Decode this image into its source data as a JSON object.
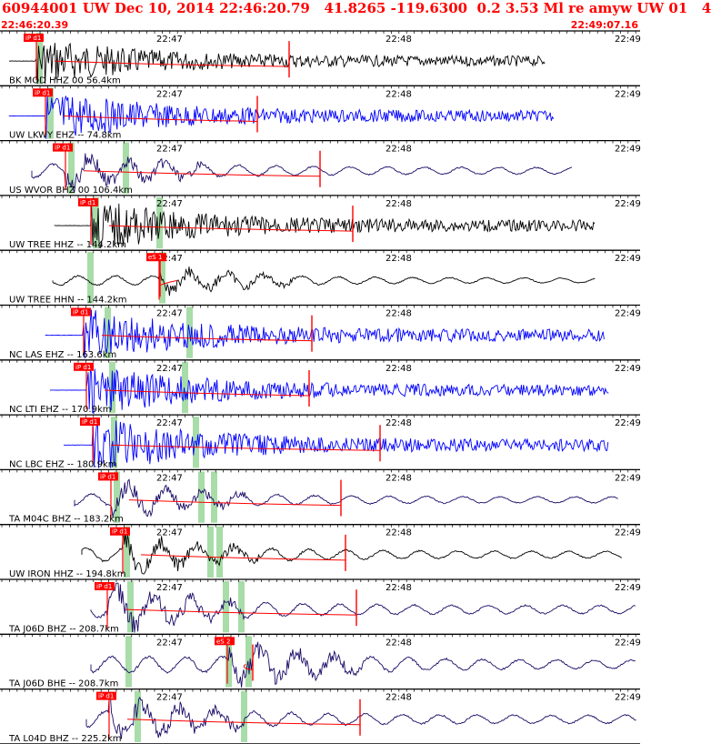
{
  "header": {
    "title": "60944001 UW Dec 10, 2014 22:46:20.79   41.8265 -119.6300  0.2 3.53 Ml re amyw UW 01   4",
    "start_time": "22:46:20.39",
    "end_time": "22:49:07.16"
  },
  "tick_labels": [
    "22:47",
    "22:48",
    "22:49"
  ],
  "colors": {
    "title": "#ff0000",
    "black_trace": "#000000",
    "blue_trace": "#0000ff",
    "purple_trace": "#1a0a66",
    "pick": "#ff0000",
    "window": "#a8dca8"
  },
  "traces": [
    {
      "label": "BK MOD HHZ 00  56.4km",
      "color": "black",
      "pick": "iP d1",
      "kind": "burst",
      "amp": 22
    },
    {
      "label": "UW LKWY EHZ -- 74.8km",
      "color": "blue",
      "pick": "iP d1",
      "kind": "burst",
      "amp": 24
    },
    {
      "label": "US WVOR BHZ 00 106.4km",
      "color": "purple",
      "pick": "iP d1",
      "kind": "wave",
      "amp": 20
    },
    {
      "label": "UW TREE HHZ -- 144.2km",
      "color": "black",
      "pick": "iP d1",
      "kind": "burst",
      "amp": 24
    },
    {
      "label": "UW TREE HHN -- 144.2km",
      "color": "black",
      "pick": "eS 1",
      "kind": "wave",
      "amp": 14
    },
    {
      "label": "NC LAS EHZ -- 163.6km",
      "color": "blue",
      "pick": "iP d1",
      "kind": "burst",
      "amp": 26
    },
    {
      "label": "NC LTI EHZ -- 170.9km",
      "color": "blue",
      "pick": "iP d1",
      "kind": "burst",
      "amp": 24
    },
    {
      "label": "NC LBC EHZ -- 180.9km",
      "color": "blue",
      "pick": "iP d1",
      "kind": "burst",
      "amp": 26
    },
    {
      "label": "TA M04C BHZ -- 183.2km",
      "color": "purple",
      "pick": "iP d1",
      "kind": "wave",
      "amp": 18
    },
    {
      "label": "UW IRON HHZ -- 194.8km",
      "color": "black",
      "pick": "iP d1",
      "kind": "wave",
      "amp": 20
    },
    {
      "label": "TA J06D BHZ -- 208.7km",
      "color": "purple",
      "pick": "iP d1",
      "kind": "wave",
      "amp": 24
    },
    {
      "label": "TA J06D BHE -- 208.7km",
      "color": "purple",
      "pick": "eS 2",
      "kind": "wave",
      "amp": 24
    },
    {
      "label": "TA L04D BHZ -- 225.2km",
      "color": "purple",
      "pick": "iP d1",
      "kind": "wave",
      "amp": 24
    }
  ]
}
